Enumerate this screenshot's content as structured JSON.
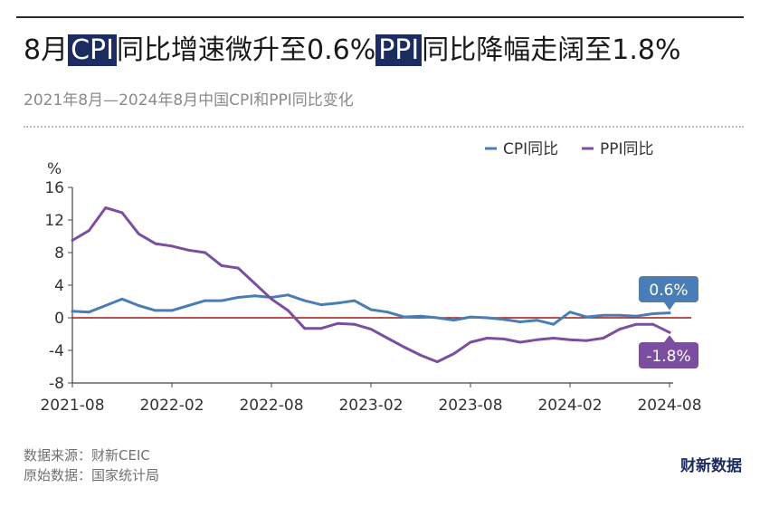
{
  "title": {
    "parts": [
      "8月",
      "CPI",
      "同比增速微升至0.6%",
      "PPI",
      "同比降幅走阔至1.8%"
    ]
  },
  "subtitle": "2021年8月—2024年8月中国CPI和PPI同比变化",
  "footer": {
    "source": "数据来源：财新CEIC",
    "origin": "原始数据：国家统计局"
  },
  "brand": "财新数据",
  "colors": {
    "cpi": "#4a7db5",
    "ppi": "#7b4ea0",
    "zero_line": "#9b1b1b",
    "title_highlight": "#1d2b63"
  },
  "chart_data": {
    "type": "line",
    "ylabel": "%",
    "ylim": [
      -8,
      16
    ],
    "yticks": [
      -8,
      -4,
      0,
      4,
      8,
      12,
      16
    ],
    "x_tick_labels": [
      "2021-08",
      "2022-02",
      "2022-08",
      "2023-02",
      "2023-08",
      "2024-02",
      "2024-08"
    ],
    "x_tick_index": [
      0,
      6,
      12,
      18,
      24,
      30,
      36
    ],
    "x": [
      "2021-08",
      "2021-09",
      "2021-10",
      "2021-11",
      "2021-12",
      "2022-01",
      "2022-02",
      "2022-03",
      "2022-04",
      "2022-05",
      "2022-06",
      "2022-07",
      "2022-08",
      "2022-09",
      "2022-10",
      "2022-11",
      "2022-12",
      "2023-01",
      "2023-02",
      "2023-03",
      "2023-04",
      "2023-05",
      "2023-06",
      "2023-07",
      "2023-08",
      "2023-09",
      "2023-10",
      "2023-11",
      "2023-12",
      "2024-01",
      "2024-02",
      "2024-03",
      "2024-04",
      "2024-05",
      "2024-06",
      "2024-07",
      "2024-08"
    ],
    "legend_position": "top-right",
    "series": [
      {
        "name": "CPI同比",
        "color": "#4a7db5",
        "values": [
          0.8,
          0.7,
          1.5,
          2.3,
          1.5,
          0.9,
          0.9,
          1.5,
          2.1,
          2.1,
          2.5,
          2.7,
          2.5,
          2.8,
          2.1,
          1.6,
          1.8,
          2.1,
          1.0,
          0.7,
          0.1,
          0.2,
          0.0,
          -0.3,
          0.1,
          0.0,
          -0.2,
          -0.5,
          -0.3,
          -0.8,
          0.7,
          0.1,
          0.3,
          0.3,
          0.2,
          0.5,
          0.6
        ],
        "end_label": "0.6%"
      },
      {
        "name": "PPI同比",
        "color": "#7b4ea0",
        "values": [
          9.5,
          10.7,
          13.5,
          12.9,
          10.3,
          9.1,
          8.8,
          8.3,
          8.0,
          6.4,
          6.1,
          4.2,
          2.3,
          0.9,
          -1.3,
          -1.3,
          -0.7,
          -0.8,
          -1.4,
          -2.5,
          -3.6,
          -4.6,
          -5.4,
          -4.4,
          -3.0,
          -2.5,
          -2.6,
          -3.0,
          -2.7,
          -2.5,
          -2.7,
          -2.8,
          -2.5,
          -1.4,
          -0.8,
          -0.8,
          -1.8
        ],
        "end_label": "-1.8%"
      }
    ]
  }
}
